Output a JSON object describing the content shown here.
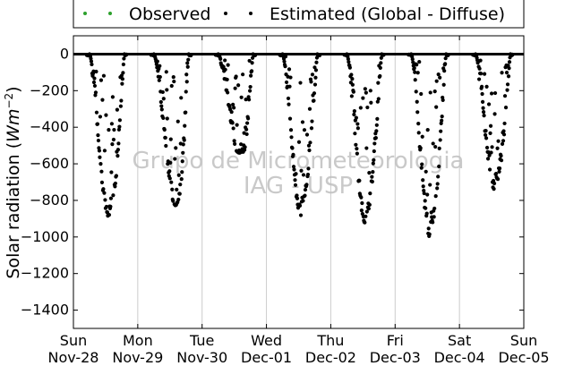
{
  "chart_data": {
    "type": "scatter",
    "ylabel_prefix": "Solar radiation (",
    "ylabel_unit_base": "Wm",
    "ylabel_unit_exp": "−2",
    "ylabel_suffix": ")",
    "ylim": [
      -1500,
      100
    ],
    "yticks": [
      0,
      -200,
      -400,
      -600,
      -800,
      -1000,
      -1200,
      -1400
    ],
    "xlim_days": [
      0,
      7
    ],
    "xticks": [
      {
        "day": 0,
        "dow": "Sun",
        "date": "Nov-28"
      },
      {
        "day": 1,
        "dow": "Mon",
        "date": "Nov-29"
      },
      {
        "day": 2,
        "dow": "Tue",
        "date": "Nov-30"
      },
      {
        "day": 3,
        "dow": "Wed",
        "date": "Dec-01"
      },
      {
        "day": 4,
        "dow": "Thu",
        "date": "Dec-02"
      },
      {
        "day": 5,
        "dow": "Fri",
        "date": "Dec-03"
      },
      {
        "day": 6,
        "dow": "Sat",
        "date": "Dec-04"
      },
      {
        "day": 7,
        "dow": "Sun",
        "date": "Dec-05"
      }
    ],
    "grid": "vertical",
    "legend_position": "top",
    "watermark": [
      "Grupo de Micrometeorologia",
      "IAG - USP"
    ],
    "series": [
      {
        "name": "Observed",
        "color": "#2ca02c",
        "marker": "dot"
      },
      {
        "name": "Estimated (Global - Diffuse)",
        "color": "#000000",
        "marker": "dot",
        "daily_envelope": [
          {
            "day": 0,
            "left_peak_hour": 13.2,
            "left_peak": -870,
            "right_peak_hour": 14.3,
            "right_peak": -790,
            "noise": 180
          },
          {
            "day": 1,
            "left_peak_hour": 14.5,
            "left_peak": -820,
            "right_peak_hour": 15.2,
            "right_peak": -760,
            "noise": 200
          },
          {
            "day": 2,
            "left_peak_hour": 14.8,
            "left_peak": -560,
            "right_peak_hour": 15.2,
            "right_peak": -520,
            "noise": 160
          },
          {
            "day": 3,
            "left_peak_hour": 13.0,
            "left_peak": -860,
            "right_peak_hour": 13.3,
            "right_peak": -800,
            "noise": 180
          },
          {
            "day": 4,
            "left_peak_hour": 13.0,
            "left_peak": -900,
            "right_peak_hour": 13.3,
            "right_peak": -850,
            "noise": 200
          },
          {
            "day": 5,
            "left_peak_hour": 13.2,
            "left_peak": -980,
            "right_peak_hour": 13.5,
            "right_peak": -900,
            "noise": 220
          },
          {
            "day": 6,
            "left_peak_hour": 13.0,
            "left_peak": -700,
            "right_peak_hour": 14.0,
            "right_peak": -650,
            "noise": 220
          }
        ]
      }
    ]
  }
}
